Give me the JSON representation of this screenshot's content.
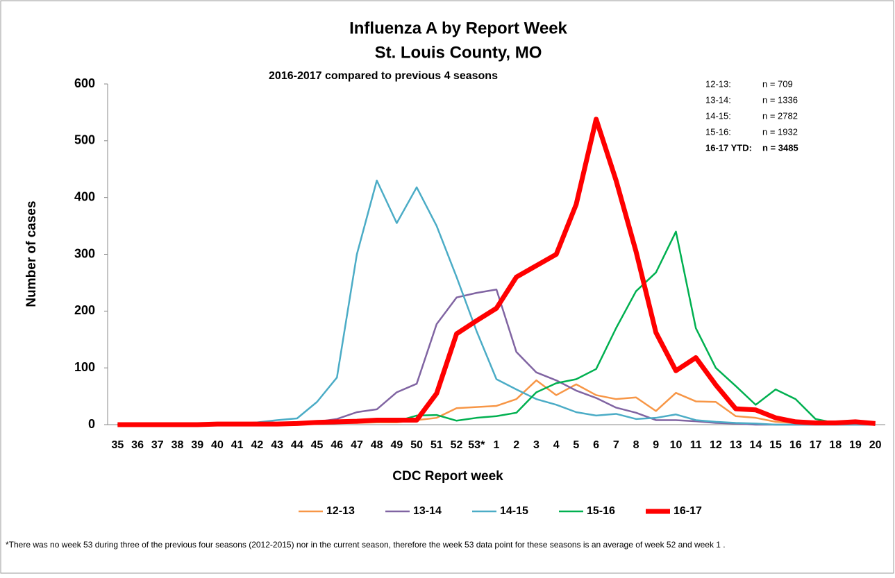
{
  "chart_data": {
    "type": "line",
    "title": "Influenza A by Report Week",
    "subtitle": "St. Louis County, MO",
    "subtitle2": "2016-2017 compared to previous 4 seasons",
    "x_label": "CDC Report week",
    "y_label": "Number of cases",
    "categories": [
      "35",
      "36",
      "37",
      "38",
      "39",
      "40",
      "41",
      "42",
      "43",
      "44",
      "45",
      "46",
      "47",
      "48",
      "49",
      "50",
      "51",
      "52",
      "53*",
      "1",
      "2",
      "3",
      "4",
      "5",
      "6",
      "7",
      "8",
      "9",
      "10",
      "11",
      "12",
      "13",
      "14",
      "15",
      "16",
      "17",
      "18",
      "19",
      "20"
    ],
    "series": [
      {
        "name": "12-13",
        "color": "#f79646",
        "width": 2.5,
        "values": [
          0,
          0,
          0,
          0,
          0,
          1,
          1,
          1,
          1,
          2,
          2,
          3,
          3,
          4,
          4,
          8,
          12,
          29,
          31,
          33,
          45,
          78,
          52,
          71,
          52,
          45,
          48,
          24,
          56,
          41,
          40,
          15,
          12,
          5,
          3,
          2,
          2,
          2,
          1
        ]
      },
      {
        "name": "13-14",
        "color": "#8064a2",
        "width": 2.5,
        "values": [
          0,
          0,
          0,
          0,
          0,
          1,
          1,
          2,
          3,
          4,
          5,
          10,
          22,
          27,
          57,
          72,
          177,
          224,
          232,
          238,
          128,
          92,
          78,
          60,
          47,
          30,
          21,
          8,
          8,
          6,
          3,
          2,
          0,
          0,
          0,
          0,
          0,
          0,
          0
        ]
      },
      {
        "name": "14-15",
        "color": "#4bacc6",
        "width": 2.5,
        "values": [
          0,
          0,
          0,
          0,
          0,
          1,
          2,
          4,
          8,
          11,
          40,
          83,
          300,
          430,
          355,
          418,
          350,
          260,
          165,
          80,
          62,
          45,
          35,
          22,
          16,
          19,
          10,
          12,
          18,
          8,
          5,
          3,
          2,
          0,
          0,
          0,
          0,
          0,
          0
        ]
      },
      {
        "name": "15-16",
        "color": "#00b050",
        "width": 2.5,
        "values": [
          0,
          0,
          0,
          0,
          0,
          1,
          1,
          2,
          2,
          3,
          3,
          4,
          5,
          5,
          6,
          16,
          17,
          7,
          12,
          15,
          21,
          57,
          73,
          80,
          98,
          170,
          235,
          268,
          340,
          170,
          100,
          68,
          35,
          62,
          45,
          10,
          3,
          3,
          2
        ]
      },
      {
        "name": "16-17",
        "color": "#ff0000",
        "width": 7,
        "values": [
          0,
          0,
          0,
          0,
          0,
          1,
          1,
          1,
          1,
          2,
          4,
          5,
          6,
          8,
          8,
          8,
          55,
          160,
          183,
          205,
          260,
          280,
          300,
          388,
          538,
          430,
          305,
          162,
          95,
          118,
          70,
          28,
          26,
          12,
          5,
          3,
          3,
          5,
          2
        ]
      }
    ],
    "ylim": [
      0,
      600
    ],
    "yticks": [
      0,
      100,
      200,
      300,
      400,
      500,
      600
    ],
    "grid": false,
    "legend": "bottom",
    "season_totals": [
      {
        "season": "12-13:",
        "n": "n =  709"
      },
      {
        "season": "13-14:",
        "n": "n = 1336"
      },
      {
        "season": "14-15:",
        "n": "n = 2782"
      },
      {
        "season": "15-16:",
        "n": "n = 1932"
      },
      {
        "season": "16-17 YTD:",
        "n": "n = 3485"
      }
    ],
    "footnote": "*There was no week 53 during three of the previous  four seasons (2012-2015) nor in the current season, therefore the week 53 data point for these seasons is an average of week 52 and week 1 ."
  }
}
